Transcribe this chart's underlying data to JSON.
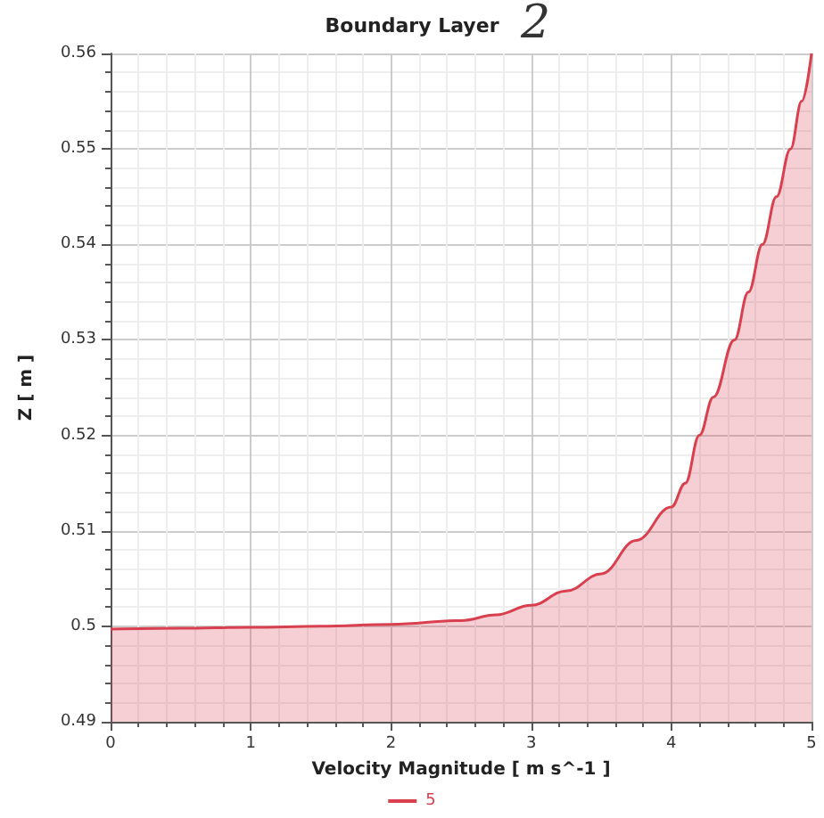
{
  "chart_data": {
    "type": "area",
    "title": "Boundary Layer",
    "annotations": [
      "2"
    ],
    "xlabel": "Velocity Magnitude [ m s^-1 ]",
    "ylabel": "Z [ m ]",
    "xlim": [
      0,
      5
    ],
    "xticks": [
      0,
      1,
      2,
      3,
      4,
      5
    ],
    "ylim": [
      0.49,
      0.56
    ],
    "yticks": [
      0.49,
      0.5,
      0.51,
      0.52,
      0.53,
      0.54,
      0.55,
      0.56
    ],
    "grid": true,
    "legend": "bottom",
    "marker": "none",
    "series": [
      {
        "name": "5",
        "color": "#d9404f",
        "x": [
          0,
          0.5,
          1,
          1.5,
          2,
          2.5,
          2.75,
          3,
          3.25,
          3.5,
          3.75,
          4,
          4.1,
          4.2,
          4.3,
          4.45,
          4.55,
          4.65,
          4.75,
          4.85,
          4.93,
          5
        ],
        "values": [
          0.4997,
          0.4998,
          0.4999,
          0.5,
          0.5002,
          0.5006,
          0.5012,
          0.5022,
          0.5037,
          0.5055,
          0.509,
          0.5125,
          0.515,
          0.52,
          0.524,
          0.53,
          0.535,
          0.54,
          0.545,
          0.55,
          0.555,
          0.56
        ]
      }
    ]
  }
}
